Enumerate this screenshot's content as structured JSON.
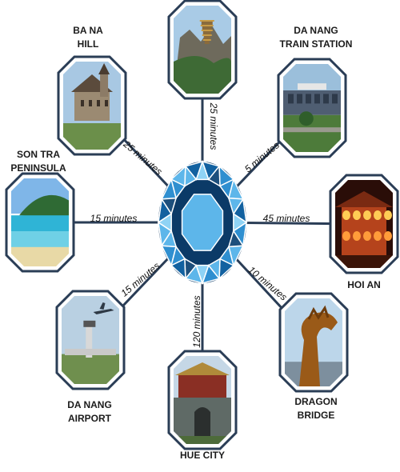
{
  "hub": {
    "icon": "gem-icon",
    "colors": [
      "#0b3a67",
      "#1261a0",
      "#2f8fd0",
      "#5db6ea",
      "#8fd3f5",
      "#1d4f7c"
    ]
  },
  "frame_color": "#2a3d56",
  "destinations": [
    {
      "id": "linh-ung-pagoda",
      "name": "",
      "time": "25 minutes",
      "photo": "pagoda-mountain-photo"
    },
    {
      "id": "da-nang-train-station",
      "name": [
        "DA NANG",
        "TRAIN STATION"
      ],
      "time": "5 minutes",
      "photo": "train-station-photo"
    },
    {
      "id": "hoi-an",
      "name": [
        "HOI AN"
      ],
      "time": "45 minutes",
      "photo": "lantern-house-photo"
    },
    {
      "id": "dragon-bridge",
      "name": [
        "DRAGON",
        "BRIDGE"
      ],
      "time": "10 minutes",
      "photo": "dragon-statue-photo"
    },
    {
      "id": "hue-city",
      "name": [
        "HUE CITY"
      ],
      "time": "120 minutes",
      "photo": "citadel-gate-photo"
    },
    {
      "id": "da-nang-airport",
      "name": [
        "DA NANG",
        "AIRPORT"
      ],
      "time": "15 minutes",
      "photo": "airport-tower-photo"
    },
    {
      "id": "son-tra-peninsula",
      "name": [
        "SON TRA",
        "PENINSULA"
      ],
      "time": "15 minutes",
      "photo": "beach-bay-photo"
    },
    {
      "id": "ba-na-hill",
      "name": [
        "BA NA",
        "HILL"
      ],
      "time": "25 minutes",
      "photo": "castle-photo"
    }
  ]
}
